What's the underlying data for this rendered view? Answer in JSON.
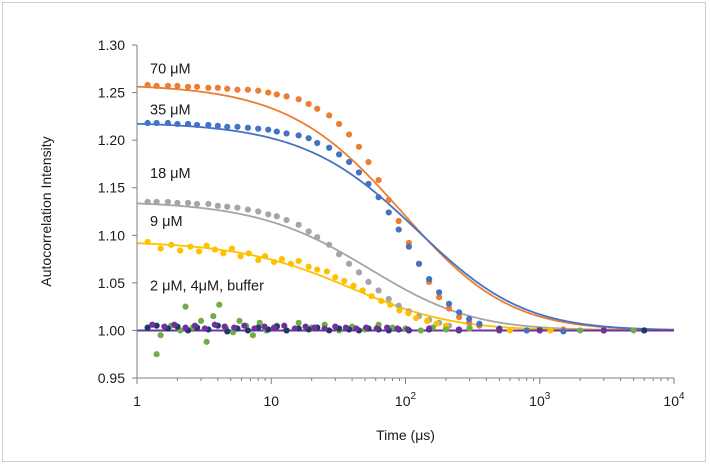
{
  "chart_data": {
    "type": "scatter",
    "title": "",
    "xlabel": "Time (μs)",
    "ylabel": "Autocorrelation Intensity",
    "xscale": "log",
    "xlim": [
      1,
      10000
    ],
    "ylim": [
      0.95,
      1.3
    ],
    "x_ticks": [
      {
        "value": 1,
        "label": "1"
      },
      {
        "value": 10,
        "label": "10"
      },
      {
        "value": 100,
        "base": "10",
        "exp": "2"
      },
      {
        "value": 1000,
        "base": "10",
        "exp": "3"
      },
      {
        "value": 10000,
        "base": "10",
        "exp": "4"
      }
    ],
    "y_ticks": [
      "0.95",
      "1.00",
      "1.05",
      "1.10",
      "1.15",
      "1.20",
      "1.25",
      "1.30"
    ],
    "grid": false,
    "legend": "none",
    "annotations": [
      {
        "text": "70 μM",
        "x": 1.1,
        "y": 1.27
      },
      {
        "text": "35 μM",
        "x": 1.1,
        "y": 1.227
      },
      {
        "text": "18 μM",
        "x": 1.1,
        "y": 1.16
      },
      {
        "text": "9 μM",
        "x": 1.1,
        "y": 1.11
      },
      {
        "text": "2 μM, 4μM, buffer",
        "x": 1.1,
        "y": 1.042
      }
    ],
    "series": [
      {
        "color": "#ED7D31",
        "fit": {
          "A": 0.259,
          "tau": 100,
          "s": 2.5
        },
        "points": [
          [
            1.2,
            1.258
          ],
          [
            1.4,
            1.257
          ],
          [
            1.7,
            1.257
          ],
          [
            2,
            1.257
          ],
          [
            2.4,
            1.256
          ],
          [
            2.8,
            1.256
          ],
          [
            3.4,
            1.255
          ],
          [
            4,
            1.255
          ],
          [
            4.7,
            1.254
          ],
          [
            5.6,
            1.253
          ],
          [
            6.7,
            1.253
          ],
          [
            8,
            1.252
          ],
          [
            9.5,
            1.25
          ],
          [
            11,
            1.248
          ],
          [
            13,
            1.246
          ],
          [
            16,
            1.243
          ],
          [
            19,
            1.238
          ],
          [
            22,
            1.233
          ],
          [
            27,
            1.226
          ],
          [
            32,
            1.217
          ],
          [
            38,
            1.206
          ],
          [
            45,
            1.193
          ],
          [
            53,
            1.177
          ],
          [
            63,
            1.158
          ],
          [
            75,
            1.137
          ],
          [
            89,
            1.115
          ],
          [
            106,
            1.092
          ],
          [
            126,
            1.07
          ],
          [
            150,
            1.051
          ],
          [
            178,
            1.035
          ],
          [
            211,
            1.023
          ],
          [
            251,
            1.014
          ],
          [
            298,
            1.008
          ],
          [
            355,
            1.005
          ],
          [
            500,
            1.001
          ],
          [
            800,
            1.0
          ],
          [
            1500,
            1.001
          ],
          [
            3000,
            1.0
          ],
          [
            6000,
            1.0
          ]
        ]
      },
      {
        "color": "#4472C4",
        "fit": {
          "A": 0.219,
          "tau": 130,
          "s": 2.5
        },
        "points": [
          [
            1.2,
            1.218
          ],
          [
            1.4,
            1.218
          ],
          [
            1.7,
            1.218
          ],
          [
            2,
            1.217
          ],
          [
            2.4,
            1.217
          ],
          [
            2.8,
            1.216
          ],
          [
            3.4,
            1.216
          ],
          [
            4,
            1.215
          ],
          [
            4.7,
            1.214
          ],
          [
            5.6,
            1.214
          ],
          [
            6.7,
            1.213
          ],
          [
            8,
            1.212
          ],
          [
            9.5,
            1.211
          ],
          [
            11,
            1.209
          ],
          [
            13,
            1.207
          ],
          [
            16,
            1.205
          ],
          [
            19,
            1.202
          ],
          [
            22,
            1.197
          ],
          [
            27,
            1.192
          ],
          [
            32,
            1.185
          ],
          [
            38,
            1.177
          ],
          [
            45,
            1.166
          ],
          [
            53,
            1.154
          ],
          [
            63,
            1.14
          ],
          [
            75,
            1.124
          ],
          [
            89,
            1.106
          ],
          [
            106,
            1.088
          ],
          [
            126,
            1.07
          ],
          [
            150,
            1.054
          ],
          [
            178,
            1.04
          ],
          [
            211,
            1.028
          ],
          [
            251,
            1.019
          ],
          [
            298,
            1.012
          ],
          [
            355,
            1.007
          ],
          [
            500,
            1.002
          ],
          [
            800,
            1.0
          ],
          [
            1500,
            0.999
          ],
          [
            3000,
            1.0
          ],
          [
            6000,
            1.0
          ]
        ]
      },
      {
        "color": "#A5A5A5",
        "fit": {
          "A": 0.136,
          "tau": 60,
          "s": 2.0
        },
        "points": [
          [
            1.2,
            1.135
          ],
          [
            1.4,
            1.135
          ],
          [
            1.7,
            1.135
          ],
          [
            2,
            1.134
          ],
          [
            2.4,
            1.134
          ],
          [
            2.8,
            1.133
          ],
          [
            3.4,
            1.133
          ],
          [
            4,
            1.131
          ],
          [
            4.7,
            1.13
          ],
          [
            5.6,
            1.129
          ],
          [
            6.7,
            1.127
          ],
          [
            8,
            1.125
          ],
          [
            9.5,
            1.122
          ],
          [
            11,
            1.12
          ],
          [
            13,
            1.116
          ],
          [
            16,
            1.111
          ],
          [
            19,
            1.104
          ],
          [
            22,
            1.098
          ],
          [
            27,
            1.09
          ],
          [
            32,
            1.08
          ],
          [
            38,
            1.07
          ],
          [
            45,
            1.061
          ],
          [
            53,
            1.051
          ],
          [
            63,
            1.042
          ],
          [
            75,
            1.033
          ],
          [
            89,
            1.026
          ],
          [
            106,
            1.02
          ],
          [
            126,
            1.015
          ],
          [
            150,
            1.011
          ],
          [
            178,
            1.008
          ],
          [
            211,
            1.005
          ],
          [
            300,
            1.003
          ],
          [
            500,
            1.001
          ],
          [
            1000,
            1.0
          ],
          [
            3000,
            1.0
          ],
          [
            6000,
            1.0
          ]
        ]
      },
      {
        "color": "#FFC000",
        "fit": {
          "A": 0.094,
          "tau": 45,
          "s": 1.8
        },
        "points": [
          [
            1.2,
            1.093
          ],
          [
            1.5,
            1.086
          ],
          [
            1.8,
            1.09
          ],
          [
            2.1,
            1.084
          ],
          [
            2.5,
            1.088
          ],
          [
            2.9,
            1.083
          ],
          [
            3.3,
            1.089
          ],
          [
            3.8,
            1.085
          ],
          [
            4.4,
            1.081
          ],
          [
            5.1,
            1.086
          ],
          [
            5.9,
            1.078
          ],
          [
            6.8,
            1.081
          ],
          [
            8,
            1.074
          ],
          [
            9,
            1.078
          ],
          [
            10.5,
            1.072
          ],
          [
            12,
            1.075
          ],
          [
            14,
            1.07
          ],
          [
            16,
            1.073
          ],
          [
            19,
            1.067
          ],
          [
            22,
            1.064
          ],
          [
            26,
            1.062
          ],
          [
            30,
            1.056
          ],
          [
            35,
            1.052
          ],
          [
            41,
            1.047
          ],
          [
            48,
            1.042
          ],
          [
            56,
            1.036
          ],
          [
            66,
            1.031
          ],
          [
            77,
            1.027
          ],
          [
            90,
            1.021
          ],
          [
            105,
            1.018
          ],
          [
            120,
            1.013
          ],
          [
            145,
            1.01
          ],
          [
            170,
            1.007
          ],
          [
            200,
            1.005
          ],
          [
            300,
            1.002
          ],
          [
            600,
            1.0
          ],
          [
            1200,
            1.0
          ],
          [
            3000,
            1.0
          ]
        ]
      },
      {
        "color": "#70AD47",
        "fit": {
          "A": 0.0,
          "tau": 100,
          "s": 2.0
        },
        "points": [
          [
            1.4,
            0.975
          ],
          [
            1.5,
            0.995
          ],
          [
            1.8,
            1.005
          ],
          [
            2.1,
            1.0
          ],
          [
            2.3,
            1.025
          ],
          [
            2.6,
            1.003
          ],
          [
            3,
            1.01
          ],
          [
            3.3,
            0.988
          ],
          [
            3.7,
            1.015
          ],
          [
            4.1,
            1.027
          ],
          [
            4.6,
            1.002
          ],
          [
            5.2,
            0.998
          ],
          [
            5.8,
            1.01
          ],
          [
            6.5,
            1.005
          ],
          [
            7.3,
            0.995
          ],
          [
            8.2,
            1.008
          ],
          [
            9.2,
            1.0
          ],
          [
            11,
            1.005
          ],
          [
            13,
            1.0
          ],
          [
            16,
            1.008
          ],
          [
            20,
            1.003
          ],
          [
            25,
            1.006
          ],
          [
            32,
            1.0
          ],
          [
            40,
            1.004
          ],
          [
            50,
            1.001
          ],
          [
            63,
            1.006
          ],
          [
            80,
            1.003
          ],
          [
            100,
            1.002
          ],
          [
            130,
            1.0
          ],
          [
            160,
            1.003
          ],
          [
            200,
            1.001
          ],
          [
            300,
            1.002
          ],
          [
            500,
            1.0
          ],
          [
            1000,
            1.001
          ],
          [
            2000,
            1.0
          ],
          [
            5000,
            1.0
          ]
        ]
      },
      {
        "color": "#203864",
        "fit": {
          "A": 0.0,
          "tau": 100,
          "s": 2.0
        },
        "points": [
          [
            1.2,
            1.003
          ],
          [
            1.4,
            1.005
          ],
          [
            1.7,
            1.002
          ],
          [
            2,
            1.004
          ],
          [
            2.4,
            1.0
          ],
          [
            2.8,
            1.003
          ],
          [
            3.4,
            1.001
          ],
          [
            4,
            1.005
          ],
          [
            4.7,
            0.999
          ],
          [
            5.6,
            1.002
          ],
          [
            6.7,
            1.0
          ],
          [
            8,
            1.003
          ],
          [
            9.5,
            1.001
          ],
          [
            11,
            1.004
          ],
          [
            13,
            1.0
          ],
          [
            16,
            1.002
          ],
          [
            19,
            1.001
          ],
          [
            22,
            1.003
          ],
          [
            27,
            1.0
          ],
          [
            32,
            1.002
          ],
          [
            38,
            1.001
          ],
          [
            45,
            1.0
          ],
          [
            53,
            1.002
          ],
          [
            63,
            1.001
          ],
          [
            75,
            1.0
          ],
          [
            89,
            1.001
          ],
          [
            106,
            1.0
          ],
          [
            150,
            1.001
          ],
          [
            250,
            1.0
          ],
          [
            500,
            1.001
          ],
          [
            1000,
            1.0
          ],
          [
            3000,
            1.0
          ],
          [
            6000,
            1.0
          ]
        ]
      },
      {
        "color": "#7030A0",
        "fit": {
          "A": 0.0,
          "tau": 100,
          "s": 2.0
        },
        "points": [
          [
            1.3,
            1.006
          ],
          [
            1.6,
            1.004
          ],
          [
            1.9,
            1.006
          ],
          [
            2.3,
            1.003
          ],
          [
            2.7,
            1.005
          ],
          [
            3.2,
            1.002
          ],
          [
            3.8,
            1.006
          ],
          [
            4.5,
            1.004
          ],
          [
            5.3,
            1.003
          ],
          [
            6.3,
            1.005
          ],
          [
            7.5,
            1.002
          ],
          [
            8.9,
            1.004
          ],
          [
            10.5,
            1.003
          ],
          [
            12.5,
            1.005
          ],
          [
            15,
            1.002
          ],
          [
            18,
            1.004
          ],
          [
            21,
            1.003
          ],
          [
            25,
            1.002
          ],
          [
            30,
            1.004
          ],
          [
            36,
            1.003
          ],
          [
            43,
            1.002
          ],
          [
            51,
            1.003
          ],
          [
            61,
            1.002
          ],
          [
            73,
            1.003
          ],
          [
            87,
            1.002
          ],
          [
            104,
            1.001
          ],
          [
            150,
            1.002
          ],
          [
            250,
            1.001
          ],
          [
            500,
            1.0
          ],
          [
            1000,
            1.0
          ],
          [
            3000,
            1.0
          ]
        ]
      }
    ]
  }
}
